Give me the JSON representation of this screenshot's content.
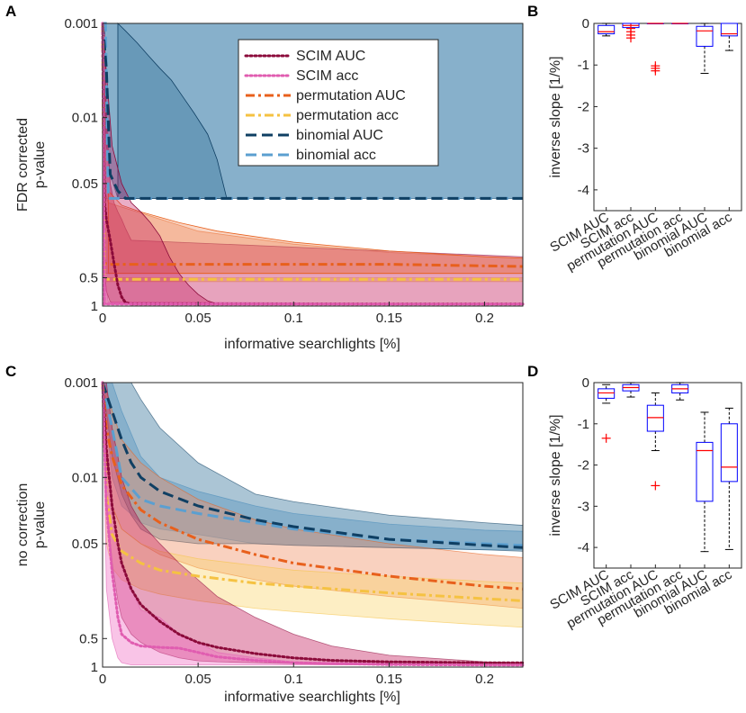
{
  "panels": {
    "A": "A",
    "B": "B",
    "C": "C",
    "D": "D"
  },
  "colors": {
    "scim_auc": "#8b0a3a",
    "scim_acc": "#e05cb0",
    "perm_auc": "#e8601c",
    "perm_acc": "#f5c242",
    "binom_auc": "#0f3f63",
    "binom_acc": "#5b9fd0",
    "fill_scim_auc": "#c2185b",
    "fill_scim_acc": "#f06cc2",
    "fill_perm_auc": "#ef8d5e",
    "fill_perm_acc": "#f9d46b",
    "fill_binom_auc": "#2e6f96",
    "fill_binom_acc": "#6aa9d6",
    "box": "#0000ff",
    "median": "#ff0000",
    "outlier": "#ff0000",
    "whisker": "#000000"
  },
  "legend_entries": [
    "SCIM AUC",
    "SCIM acc",
    "permutation AUC",
    "permutation acc",
    "binomial AUC",
    "binomial acc"
  ],
  "chart_data": [
    {
      "id": "A",
      "type": "line",
      "title": "",
      "xlabel": "informative searchlights [%]",
      "ylabel_line1": "FDR corrected",
      "ylabel_line2": "p-value",
      "xlim": [
        0,
        0.22
      ],
      "ylim": [
        0.001,
        1
      ],
      "yscale": "reverse-log",
      "xticks": [
        0,
        0.05,
        0.1,
        0.15,
        0.2
      ],
      "xtick_labels": [
        "0",
        "0.05",
        "0.1",
        "0.15",
        "0.2"
      ],
      "yticks": [
        0.001,
        0.01,
        0.05,
        0.5,
        1
      ],
      "ytick_labels": [
        "0.001",
        "0.01",
        "0.05",
        "0.5",
        "1"
      ],
      "legend_position": "top-right",
      "series": [
        {
          "key": "binom_acc",
          "name": "binomial acc",
          "style": "dash",
          "x": [
            0,
            0.0015,
            0.003,
            0.008,
            0.22
          ],
          "y": [
            0.001,
            0.001,
            0.072,
            0.072,
            0.072
          ],
          "band_upper": [
            0.001,
            0.001,
            0.001,
            0.001,
            0.001
          ],
          "band_lower": [
            0.001,
            0.072,
            0.072,
            0.072,
            0.072
          ]
        },
        {
          "key": "binom_auc",
          "name": "binomial AUC",
          "style": "dash",
          "x": [
            0,
            0.002,
            0.004,
            0.008,
            0.012,
            0.016,
            0.02,
            0.22
          ],
          "y": [
            0.001,
            0.003,
            0.04,
            0.06,
            0.072,
            0.072,
            0.072,
            0.072
          ],
          "band_upper": [
            0.001,
            0.001,
            0.001,
            0.001,
            0.001,
            0.001,
            0.001,
            0.001
          ],
          "band_lower": [
            0.001,
            0.02,
            0.04,
            0.072,
            0.072,
            0.072,
            0.072,
            0.072
          ]
        },
        {
          "key": "perm_auc",
          "name": "permutation AUC",
          "style": "dashdot",
          "x": [
            0,
            0.001,
            0.003,
            0.05,
            0.1,
            0.15,
            0.22
          ],
          "y": [
            0.001,
            0.35,
            0.36,
            0.36,
            0.36,
            0.36,
            0.38
          ],
          "band_upper": [
            0.001,
            0.06,
            0.08,
            0.16,
            0.22,
            0.27,
            0.31
          ],
          "band_lower": [
            0.001,
            0.45,
            0.45,
            0.45,
            0.45,
            0.45,
            0.45
          ]
        },
        {
          "key": "perm_acc",
          "name": "permutation acc",
          "style": "dashdot",
          "x": [
            0,
            0.001,
            0.003,
            0.05,
            0.1,
            0.15,
            0.22
          ],
          "y": [
            0.001,
            0.52,
            0.52,
            0.52,
            0.52,
            0.52,
            0.52
          ],
          "band_upper": [
            0.001,
            0.5,
            0.5,
            0.5,
            0.5,
            0.5,
            0.5
          ],
          "band_lower": [
            0.001,
            0.55,
            0.55,
            0.55,
            0.55,
            0.55,
            0.55
          ]
        },
        {
          "key": "scim_auc",
          "name": "SCIM AUC",
          "style": "dot",
          "x": [
            0,
            0.001,
            0.002,
            0.004,
            0.006,
            0.008,
            0.01,
            0.012,
            0.015,
            0.22
          ],
          "y": [
            0.001,
            0.08,
            0.12,
            0.2,
            0.35,
            0.6,
            0.8,
            0.92,
            0.95,
            0.95
          ],
          "band_upper": [
            0.001,
            0.001,
            0.01,
            0.05,
            0.08,
            0.1,
            0.12,
            0.15,
            0.2,
            0.3
          ],
          "band_lower": [
            0.001,
            0.4,
            0.7,
            0.9,
            0.95,
            0.95,
            0.95,
            0.95,
            0.95,
            0.95
          ]
        },
        {
          "key": "scim_acc",
          "name": "SCIM acc",
          "style": "dot",
          "x": [
            0,
            0.001,
            0.003,
            0.22
          ],
          "y": [
            0.001,
            0.95,
            0.95,
            0.95
          ],
          "band_upper": [
            0.001,
            0.5,
            0.9,
            0.95
          ],
          "band_lower": [
            0.001,
            0.95,
            0.95,
            0.95
          ]
        }
      ],
      "band_edges": {
        "binom_auc_upper": {
          "x": [
            0.008,
            0.012,
            0.018,
            0.024,
            0.03,
            0.036,
            0.042,
            0.048,
            0.055,
            0.06,
            0.065
          ],
          "y": [
            0.001,
            0.0012,
            0.0016,
            0.0022,
            0.003,
            0.004,
            0.006,
            0.009,
            0.015,
            0.028,
            0.072
          ]
        },
        "perm_auc_upper": {
          "x": [
            0.003,
            0.01,
            0.02,
            0.04,
            0.06,
            0.1,
            0.15,
            0.2,
            0.22
          ],
          "y": [
            0.06,
            0.085,
            0.1,
            0.13,
            0.16,
            0.21,
            0.26,
            0.3,
            0.31
          ]
        },
        "scim_auc_upper": {
          "x": [
            0.0,
            0.005,
            0.01,
            0.015,
            0.02,
            0.025,
            0.03,
            0.035,
            0.04,
            0.045,
            0.05,
            0.055,
            0.06
          ],
          "y": [
            0.001,
            0.02,
            0.05,
            0.08,
            0.1,
            0.13,
            0.18,
            0.3,
            0.45,
            0.6,
            0.75,
            0.88,
            0.95
          ]
        }
      }
    },
    {
      "id": "B",
      "type": "box",
      "title": "",
      "ylabel": "inverse slope [1/%]",
      "ylim": [
        -4.5,
        0
      ],
      "yticks": [
        0,
        -1,
        -2,
        -3,
        -4
      ],
      "ytick_labels": [
        "0",
        "-1",
        "-2",
        "-3",
        "-4"
      ],
      "categories": [
        "SCIM AUC",
        "SCIM acc",
        "permutation AUC",
        "permutation acc",
        "binomial AUC",
        "binomial acc"
      ],
      "boxes": [
        {
          "q1": -0.25,
          "median": -0.2,
          "q3": -0.05,
          "whisker_low": -0.3,
          "whisker_high": 0,
          "outliers": []
        },
        {
          "q1": -0.1,
          "median": -0.05,
          "q3": 0,
          "whisker_low": -0.12,
          "whisker_high": 0,
          "outliers": [
            -0.12,
            -0.2,
            -0.28,
            -0.35
          ]
        },
        {
          "q1": 0,
          "median": 0,
          "q3": 0,
          "whisker_low": 0,
          "whisker_high": 0,
          "outliers": [
            -1.02,
            -1.08,
            -1.14
          ]
        },
        {
          "q1": 0,
          "median": 0,
          "q3": 0,
          "whisker_low": 0,
          "whisker_high": 0,
          "outliers": []
        },
        {
          "q1": -0.55,
          "median": -0.18,
          "q3": -0.07,
          "whisker_low": -1.2,
          "whisker_high": 0,
          "outliers": []
        },
        {
          "q1": -0.3,
          "median": -0.25,
          "q3": 0,
          "whisker_low": -0.65,
          "whisker_high": 0,
          "outliers": []
        }
      ]
    },
    {
      "id": "C",
      "type": "line",
      "title": "",
      "xlabel": "informative searchlights [%]",
      "ylabel_line1": "no correction",
      "ylabel_line2": "p-value",
      "xlim": [
        0,
        0.22
      ],
      "ylim": [
        0.001,
        1
      ],
      "yscale": "reverse-log",
      "xticks": [
        0,
        0.05,
        0.1,
        0.15,
        0.2
      ],
      "xtick_labels": [
        "0",
        "0.05",
        "0.1",
        "0.15",
        "0.2"
      ],
      "yticks": [
        0.001,
        0.01,
        0.05,
        0.5,
        1
      ],
      "ytick_labels": [
        "0.001",
        "0.01",
        "0.05",
        "0.5",
        "1"
      ],
      "series": [
        {
          "key": "binom_acc",
          "name": "binomial acc",
          "style": "dash",
          "x": [
            0,
            0.005,
            0.01,
            0.02,
            0.03,
            0.05,
            0.08,
            0.1,
            0.15,
            0.2,
            0.22
          ],
          "y": [
            0.001,
            0.003,
            0.01,
            0.017,
            0.02,
            0.024,
            0.03,
            0.035,
            0.045,
            0.05,
            0.052
          ],
          "band_upper": [
            0.001,
            0.001,
            0.002,
            0.006,
            0.01,
            0.014,
            0.02,
            0.024,
            0.031,
            0.036,
            0.037
          ],
          "band_lower": [
            0.001,
            0.01,
            0.02,
            0.03,
            0.035,
            0.04,
            0.05,
            0.052,
            0.055,
            0.058,
            0.058
          ]
        },
        {
          "key": "binom_auc",
          "name": "binomial AUC",
          "style": "dash",
          "x": [
            0,
            0.005,
            0.01,
            0.015,
            0.02,
            0.03,
            0.05,
            0.08,
            0.1,
            0.15,
            0.2,
            0.22
          ],
          "y": [
            0.001,
            0.002,
            0.004,
            0.007,
            0.01,
            0.014,
            0.02,
            0.028,
            0.033,
            0.045,
            0.052,
            0.055
          ],
          "band_upper": [
            0.001,
            0.001,
            0.001,
            0.001,
            0.0015,
            0.003,
            0.007,
            0.015,
            0.018,
            0.025,
            0.03,
            0.032
          ],
          "band_lower": [
            0.001,
            0.006,
            0.015,
            0.025,
            0.035,
            0.045,
            0.05,
            0.05,
            0.052,
            0.055,
            0.058,
            0.06
          ]
        },
        {
          "key": "perm_auc",
          "name": "permutation AUC",
          "style": "dashdot",
          "x": [
            0,
            0.002,
            0.005,
            0.01,
            0.02,
            0.03,
            0.05,
            0.08,
            0.1,
            0.15,
            0.2,
            0.22
          ],
          "y": [
            0.001,
            0.003,
            0.006,
            0.012,
            0.022,
            0.03,
            0.045,
            0.065,
            0.08,
            0.11,
            0.14,
            0.15
          ],
          "band_upper": [
            0.001,
            0.0012,
            0.002,
            0.004,
            0.007,
            0.01,
            0.017,
            0.028,
            0.035,
            0.05,
            0.065,
            0.07
          ],
          "band_lower": [
            0.001,
            0.008,
            0.02,
            0.035,
            0.05,
            0.065,
            0.09,
            0.12,
            0.14,
            0.18,
            0.22,
            0.24
          ]
        },
        {
          "key": "perm_acc",
          "name": "permutation acc",
          "style": "dashdot",
          "x": [
            0,
            0.002,
            0.005,
            0.01,
            0.02,
            0.03,
            0.05,
            0.08,
            0.1,
            0.15,
            0.2,
            0.22
          ],
          "y": [
            0.001,
            0.015,
            0.04,
            0.06,
            0.08,
            0.095,
            0.11,
            0.13,
            0.14,
            0.165,
            0.19,
            0.2
          ],
          "band_upper": [
            0.001,
            0.005,
            0.02,
            0.035,
            0.05,
            0.06,
            0.072,
            0.085,
            0.095,
            0.11,
            0.125,
            0.13
          ],
          "band_lower": [
            0.001,
            0.05,
            0.09,
            0.12,
            0.15,
            0.17,
            0.2,
            0.24,
            0.26,
            0.31,
            0.36,
            0.38
          ]
        },
        {
          "key": "scim_auc",
          "name": "SCIM AUC",
          "style": "dot",
          "x": [
            0,
            0.002,
            0.005,
            0.008,
            0.01,
            0.015,
            0.02,
            0.03,
            0.04,
            0.05,
            0.06,
            0.08,
            0.1,
            0.12,
            0.15,
            0.2,
            0.22
          ],
          "y": [
            0.001,
            0.005,
            0.02,
            0.05,
            0.08,
            0.15,
            0.22,
            0.33,
            0.45,
            0.55,
            0.62,
            0.72,
            0.8,
            0.85,
            0.88,
            0.9,
            0.9
          ],
          "band_upper": [
            0.001,
            0.001,
            0.003,
            0.006,
            0.01,
            0.02,
            0.03,
            0.05,
            0.08,
            0.12,
            0.18,
            0.3,
            0.45,
            0.6,
            0.75,
            0.88,
            0.9
          ],
          "band_lower": [
            0.001,
            0.02,
            0.08,
            0.2,
            0.3,
            0.45,
            0.55,
            0.7,
            0.8,
            0.86,
            0.88,
            0.9,
            0.92,
            0.94,
            0.95,
            0.95,
            0.95
          ]
        },
        {
          "key": "scim_acc",
          "name": "SCIM acc",
          "style": "dot",
          "x": [
            0,
            0.002,
            0.005,
            0.008,
            0.01,
            0.015,
            0.02,
            0.03,
            0.04,
            0.05,
            0.06,
            0.08,
            0.1,
            0.15,
            0.2,
            0.22
          ],
          "y": [
            0.001,
            0.02,
            0.1,
            0.3,
            0.45,
            0.55,
            0.6,
            0.62,
            0.63,
            0.7,
            0.78,
            0.85,
            0.9,
            0.94,
            0.95,
            0.95
          ],
          "band_upper": [
            0.001,
            0.005,
            0.02,
            0.05,
            0.08,
            0.15,
            0.25,
            0.3,
            0.45,
            0.55,
            0.7,
            0.8,
            0.88,
            0.92,
            0.95,
            0.95
          ],
          "band_lower": [
            0.001,
            0.15,
            0.5,
            0.8,
            0.9,
            0.95,
            0.95,
            0.95,
            0.95,
            0.95,
            0.95,
            0.95,
            0.95,
            0.95,
            0.95,
            0.95
          ]
        }
      ]
    },
    {
      "id": "D",
      "type": "box",
      "title": "",
      "ylabel": "inverse slope [1/%]",
      "ylim": [
        -4.5,
        0
      ],
      "yticks": [
        0,
        -1,
        -2,
        -3,
        -4
      ],
      "ytick_labels": [
        "0",
        "-1",
        "-2",
        "-3",
        "-4"
      ],
      "categories": [
        "SCIM AUC",
        "SCIM acc",
        "permutation AUC",
        "permutation acc",
        "binomial AUC",
        "binomial acc"
      ],
      "boxes": [
        {
          "q1": -0.38,
          "median": -0.25,
          "q3": -0.15,
          "whisker_low": -0.5,
          "whisker_high": -0.05,
          "outliers": [
            -1.35
          ]
        },
        {
          "q1": -0.2,
          "median": -0.12,
          "q3": -0.05,
          "whisker_low": -0.35,
          "whisker_high": 0,
          "outliers": []
        },
        {
          "q1": -1.18,
          "median": -0.85,
          "q3": -0.55,
          "whisker_low": -1.65,
          "whisker_high": -0.25,
          "outliers": [
            -2.5
          ]
        },
        {
          "q1": -0.25,
          "median": -0.15,
          "q3": -0.05,
          "whisker_low": -0.42,
          "whisker_high": 0,
          "outliers": []
        },
        {
          "q1": -2.88,
          "median": -1.65,
          "q3": -1.45,
          "whisker_low": -4.1,
          "whisker_high": -0.72,
          "outliers": []
        },
        {
          "q1": -2.4,
          "median": -2.05,
          "q3": -1.0,
          "whisker_low": -4.05,
          "whisker_high": -0.62,
          "outliers": []
        }
      ]
    }
  ]
}
